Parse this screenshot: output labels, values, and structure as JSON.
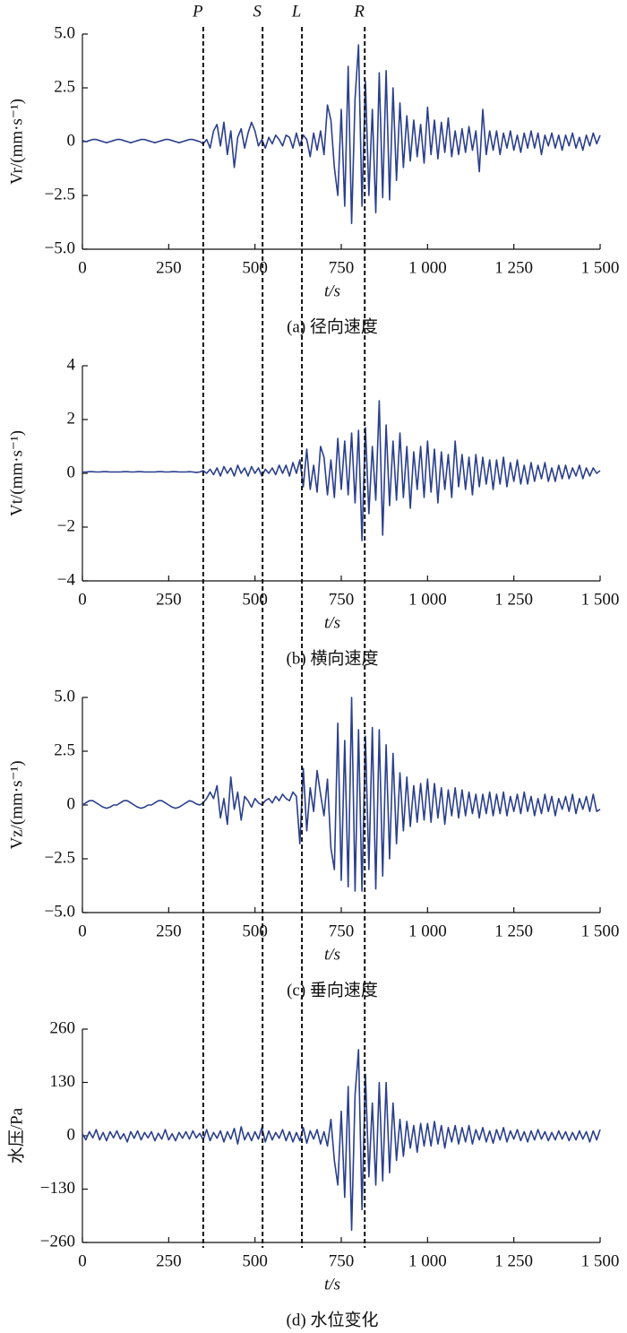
{
  "markers": [
    {
      "label": "P",
      "x": 350
    },
    {
      "label": "S",
      "x": 522
    },
    {
      "label": "L",
      "x": 636
    },
    {
      "label": "R",
      "x": 818
    }
  ],
  "chart_data": [
    {
      "type": "line",
      "caption": "(a) 径向速度",
      "xlabel": "t/s",
      "ylabel": "Vr/(mm·s⁻¹)",
      "color": "#2b3f8c",
      "xlim": [
        0,
        1500
      ],
      "xticks": [
        0,
        250,
        500,
        750,
        {
          "value": 1000,
          "label": "1 000"
        },
        {
          "value": 1250,
          "label": "1 250"
        },
        {
          "value": 1500,
          "label": "1 500"
        }
      ],
      "ylim": [
        -5,
        5
      ],
      "yticks": [
        {
          "value": -5,
          "label": "−5.0"
        },
        {
          "value": -2.5,
          "label": "−2.5"
        },
        0,
        2.5,
        {
          "value": 5,
          "label": "5.0"
        }
      ],
      "x": [
        0,
        10,
        20,
        30,
        40,
        50,
        60,
        70,
        80,
        90,
        100,
        110,
        120,
        130,
        140,
        150,
        160,
        170,
        180,
        190,
        200,
        210,
        220,
        230,
        240,
        250,
        260,
        270,
        280,
        290,
        300,
        310,
        320,
        330,
        340,
        350,
        360,
        370,
        380,
        390,
        400,
        410,
        420,
        430,
        440,
        450,
        460,
        470,
        480,
        490,
        500,
        510,
        520,
        530,
        540,
        550,
        560,
        570,
        580,
        590,
        600,
        610,
        620,
        630,
        640,
        650,
        660,
        670,
        680,
        690,
        700,
        710,
        720,
        730,
        740,
        750,
        760,
        770,
        780,
        790,
        800,
        810,
        820,
        830,
        840,
        850,
        860,
        870,
        880,
        890,
        900,
        910,
        920,
        930,
        940,
        950,
        960,
        970,
        980,
        990,
        1000,
        1010,
        1020,
        1030,
        1040,
        1050,
        1060,
        1070,
        1080,
        1090,
        1100,
        1110,
        1120,
        1130,
        1140,
        1150,
        1160,
        1170,
        1180,
        1190,
        1200,
        1210,
        1220,
        1230,
        1240,
        1250,
        1260,
        1270,
        1280,
        1290,
        1300,
        1310,
        1320,
        1330,
        1340,
        1350,
        1360,
        1370,
        1380,
        1390,
        1400,
        1410,
        1420,
        1430,
        1440,
        1450,
        1460,
        1470,
        1480,
        1490,
        1500
      ],
      "values": [
        0.05,
        0,
        0.05,
        0.1,
        0.1,
        0.05,
        0,
        -0.05,
        0,
        0.05,
        0.1,
        0.1,
        0.05,
        0,
        -0.05,
        0,
        0.05,
        0.1,
        0.1,
        0.05,
        0,
        -0.05,
        0,
        0.05,
        0.1,
        0.1,
        0.05,
        0,
        -0.05,
        0,
        0.05,
        0.1,
        0.1,
        0.05,
        0,
        -0.1,
        0.1,
        -0.3,
        0.5,
        0.8,
        -0.2,
        0.9,
        -0.6,
        0.5,
        -1.2,
        0.2,
        0.6,
        -0.3,
        0.4,
        0.9,
        0.5,
        -0.2,
        0.1,
        -0.3,
        0.2,
        -0.1,
        0.3,
        0.1,
        -0.2,
        0.3,
        0.2,
        -0.3,
        0.4,
        -0.2,
        0.3,
        0.1,
        -0.7,
        0.4,
        -0.4,
        0.5,
        -0.6,
        1.7,
        1.0,
        -1.2,
        -2.5,
        1.5,
        -3.0,
        3.5,
        -3.8,
        2.0,
        4.5,
        -3.0,
        2.8,
        -2.5,
        1.5,
        -3.3,
        3.2,
        -2.6,
        3.3,
        -2.7,
        2.5,
        -1.8,
        1.8,
        -1.2,
        1.2,
        -0.9,
        1.0,
        -0.7,
        0.8,
        -1.0,
        1.6,
        -0.6,
        1.0,
        -0.8,
        0.9,
        -0.5,
        1.1,
        -0.7,
        0.5,
        -0.6,
        0.6,
        -0.5,
        0.7,
        -0.4,
        0.5,
        -1.4,
        1.5,
        -0.6,
        0.5,
        -0.4,
        0.5,
        -0.6,
        0.4,
        -0.3,
        0.5,
        -0.4,
        0.3,
        -0.5,
        0.4,
        -0.3,
        0.5,
        -0.3,
        0.4,
        -0.6,
        0.3,
        -0.2,
        0.4,
        -0.3,
        0.3,
        -0.4,
        0.3,
        -0.2,
        0.4,
        -0.3,
        0.2,
        -0.4,
        0.3,
        -0.2,
        0.4,
        -0.1,
        0.3
      ]
    },
    {
      "type": "line",
      "caption": "(b) 横向速度",
      "xlabel": "t/s",
      "ylabel": "Vt/(mm·s⁻¹)",
      "color": "#2b3f8c",
      "xlim": [
        0,
        1500
      ],
      "xticks": [
        0,
        250,
        500,
        750,
        {
          "value": 1000,
          "label": "1 000"
        },
        {
          "value": 1250,
          "label": "1 250"
        },
        {
          "value": 1500,
          "label": "1 500"
        }
      ],
      "ylim": [
        -4,
        4
      ],
      "yticks": [
        {
          "value": -4,
          "label": "−4"
        },
        {
          "value": -2,
          "label": "−2"
        },
        0,
        2,
        4
      ],
      "x": [
        0,
        10,
        20,
        30,
        40,
        50,
        60,
        70,
        80,
        90,
        100,
        110,
        120,
        130,
        140,
        150,
        160,
        170,
        180,
        190,
        200,
        210,
        220,
        230,
        240,
        250,
        260,
        270,
        280,
        290,
        300,
        310,
        320,
        330,
        340,
        350,
        360,
        370,
        380,
        390,
        400,
        410,
        420,
        430,
        440,
        450,
        460,
        470,
        480,
        490,
        500,
        510,
        520,
        530,
        540,
        550,
        560,
        570,
        580,
        590,
        600,
        610,
        620,
        630,
        640,
        650,
        660,
        670,
        680,
        690,
        700,
        710,
        720,
        730,
        740,
        750,
        760,
        770,
        780,
        790,
        800,
        810,
        820,
        830,
        840,
        850,
        860,
        870,
        880,
        890,
        900,
        910,
        920,
        930,
        940,
        950,
        960,
        970,
        980,
        990,
        1000,
        1010,
        1020,
        1030,
        1040,
        1050,
        1060,
        1070,
        1080,
        1090,
        1100,
        1110,
        1120,
        1130,
        1140,
        1150,
        1160,
        1170,
        1180,
        1190,
        1200,
        1210,
        1220,
        1230,
        1240,
        1250,
        1260,
        1270,
        1280,
        1290,
        1300,
        1310,
        1320,
        1330,
        1340,
        1350,
        1360,
        1370,
        1380,
        1390,
        1400,
        1410,
        1420,
        1430,
        1440,
        1450,
        1460,
        1470,
        1480,
        1490,
        1500
      ],
      "values": [
        0.05,
        0.05,
        0.06,
        0.06,
        0.05,
        0.05,
        0.06,
        0.06,
        0.05,
        0.05,
        0.05,
        0.05,
        0.06,
        0.06,
        0.05,
        0.05,
        0.06,
        0.06,
        0.05,
        0.05,
        0.05,
        0.05,
        0.06,
        0.06,
        0.05,
        0.05,
        0.06,
        0.06,
        0.05,
        0.05,
        0.05,
        0.06,
        0.05,
        0.03,
        0.05,
        0.1,
        0,
        0.15,
        -0.05,
        0.2,
        -0.1,
        0.25,
        0,
        0.2,
        -0.1,
        0.3,
        0,
        0.2,
        -0.1,
        0.25,
        0,
        0.2,
        -0.1,
        0.15,
        0,
        0.2,
        -0.05,
        0.3,
        0,
        0.3,
        -0.1,
        0.4,
        0,
        0.5,
        -0.5,
        0.9,
        -0.6,
        0.3,
        -0.7,
        1.0,
        0.6,
        -0.8,
        0.5,
        -0.9,
        1.3,
        -0.6,
        1.2,
        -0.8,
        1.5,
        -1.1,
        1.6,
        -2.5,
        1.7,
        -1.5,
        1.0,
        -1.0,
        2.7,
        -2.3,
        1.8,
        -1.2,
        1.2,
        -1.0,
        1.5,
        -0.9,
        1.0,
        -1.3,
        0.8,
        -0.6,
        1.0,
        -0.9,
        1.2,
        -0.7,
        0.9,
        -1.1,
        0.8,
        -0.6,
        0.7,
        -0.9,
        1.2,
        -0.5,
        0.7,
        -0.6,
        0.6,
        -0.8,
        0.7,
        -0.5,
        0.6,
        -0.4,
        0.5,
        -0.6,
        0.5,
        -0.4,
        0.6,
        -0.5,
        0.4,
        -0.3,
        0.5,
        -0.4,
        0.3,
        -0.4,
        0.4,
        -0.3,
        0.3,
        -0.2,
        0.4,
        -0.3,
        0.2,
        -0.3,
        0.3,
        -0.2,
        0.3,
        -0.2,
        0.2,
        -0.1,
        0.3,
        -0.2,
        0.2,
        -0.1,
        0.2,
        0,
        0.1
      ]
    },
    {
      "type": "line",
      "caption": "(c) 垂向速度",
      "xlabel": "t/s",
      "ylabel": "Vz/(mm·s⁻¹)",
      "color": "#2b3f8c",
      "xlim": [
        0,
        1500
      ],
      "xticks": [
        0,
        250,
        500,
        750,
        {
          "value": 1000,
          "label": "1 000"
        },
        {
          "value": 1250,
          "label": "1 250"
        },
        {
          "value": 1500,
          "label": "1 500"
        }
      ],
      "ylim": [
        -5,
        5
      ],
      "yticks": [
        {
          "value": -5,
          "label": "−5.0"
        },
        {
          "value": -2.5,
          "label": "−2.5"
        },
        0,
        2.5,
        {
          "value": 5,
          "label": "5.0"
        }
      ],
      "x": [
        0,
        10,
        20,
        30,
        40,
        50,
        60,
        70,
        80,
        90,
        100,
        110,
        120,
        130,
        140,
        150,
        160,
        170,
        180,
        190,
        200,
        210,
        220,
        230,
        240,
        250,
        260,
        270,
        280,
        290,
        300,
        310,
        320,
        330,
        340,
        350,
        360,
        370,
        380,
        390,
        400,
        410,
        420,
        430,
        440,
        450,
        460,
        470,
        480,
        490,
        500,
        510,
        520,
        530,
        540,
        550,
        560,
        570,
        580,
        590,
        600,
        610,
        620,
        630,
        640,
        650,
        660,
        670,
        680,
        690,
        700,
        710,
        720,
        730,
        740,
        750,
        760,
        770,
        780,
        790,
        800,
        810,
        820,
        830,
        840,
        850,
        860,
        870,
        880,
        890,
        900,
        910,
        920,
        930,
        940,
        950,
        960,
        970,
        980,
        990,
        1000,
        1010,
        1020,
        1030,
        1040,
        1050,
        1060,
        1070,
        1080,
        1090,
        1100,
        1110,
        1120,
        1130,
        1140,
        1150,
        1160,
        1170,
        1180,
        1190,
        1200,
        1210,
        1220,
        1230,
        1240,
        1250,
        1260,
        1270,
        1280,
        1290,
        1300,
        1310,
        1320,
        1330,
        1340,
        1350,
        1360,
        1370,
        1380,
        1390,
        1400,
        1410,
        1420,
        1430,
        1440,
        1450,
        1460,
        1470,
        1480,
        1490,
        1500
      ],
      "values": [
        0,
        0.1,
        0.2,
        0.2,
        0.1,
        0,
        -0.1,
        -0.15,
        -0.1,
        0,
        0,
        0.1,
        0.2,
        0.2,
        0.1,
        0,
        -0.1,
        -0.15,
        -0.1,
        0,
        0,
        0.1,
        0.2,
        0.2,
        0.1,
        0,
        -0.1,
        -0.15,
        -0.1,
        0,
        0.1,
        0.2,
        0.15,
        0.05,
        0,
        0.1,
        0.3,
        0.6,
        0.3,
        0.9,
        -0.6,
        0.3,
        -0.9,
        1.3,
        -0.2,
        0.6,
        -0.7,
        0.4,
        0.2,
        -0.1,
        0.3,
        0.1,
        0,
        0.2,
        0.3,
        0.1,
        0.4,
        0.2,
        0.5,
        0.3,
        0.2,
        0.6,
        0.4,
        -1.8,
        1.7,
        -1.2,
        0.8,
        -0.3,
        1.6,
        0.5,
        -0.5,
        1.2,
        -2.0,
        -3.0,
        3.8,
        -3.5,
        3.0,
        -3.8,
        5.0,
        -4.0,
        3.5,
        -4.0,
        3.2,
        -3.0,
        3.6,
        -3.9,
        3.5,
        -3.3,
        2.8,
        -2.5,
        2.4,
        -1.8,
        1.5,
        -1.2,
        1.3,
        -1.0,
        0.9,
        -0.8,
        1.0,
        -0.7,
        1.2,
        -0.8,
        1.0,
        -0.6,
        0.8,
        -0.9,
        0.7,
        -0.5,
        0.8,
        -0.6,
        0.7,
        -0.5,
        0.6,
        -0.4,
        0.5,
        -0.6,
        0.5,
        -0.4,
        0.6,
        -0.5,
        0.5,
        -0.4,
        0.6,
        -0.5,
        0.4,
        -0.3,
        0.5,
        -0.4,
        0.6,
        -0.3,
        0.4,
        -0.5,
        0.3,
        -0.4,
        0.5,
        -0.3,
        0.4,
        -0.5,
        0.3,
        -0.2,
        0.4,
        -0.3,
        0.5,
        -0.4,
        0.3,
        -0.2,
        0.4,
        -0.3,
        0.5,
        -0.3,
        -0.2
      ]
    },
    {
      "type": "line",
      "caption": "(d) 水位变化",
      "xlabel": "t/s",
      "ylabel": "水压/Pa",
      "color": "#2b3f8c",
      "xlim": [
        0,
        1500
      ],
      "xticks": [
        0,
        250,
        500,
        750,
        {
          "value": 1000,
          "label": "1 000"
        },
        {
          "value": 1250,
          "label": "1 250"
        },
        {
          "value": 1500,
          "label": "1 500"
        }
      ],
      "ylim": [
        -260,
        260
      ],
      "yticks": [
        {
          "value": -260,
          "label": "−260"
        },
        {
          "value": -130,
          "label": "−130"
        },
        0,
        130,
        260
      ],
      "x": [
        0,
        10,
        20,
        30,
        40,
        50,
        60,
        70,
        80,
        90,
        100,
        110,
        120,
        130,
        140,
        150,
        160,
        170,
        180,
        190,
        200,
        210,
        220,
        230,
        240,
        250,
        260,
        270,
        280,
        290,
        300,
        310,
        320,
        330,
        340,
        350,
        360,
        370,
        380,
        390,
        400,
        410,
        420,
        430,
        440,
        450,
        460,
        470,
        480,
        490,
        500,
        510,
        520,
        530,
        540,
        550,
        560,
        570,
        580,
        590,
        600,
        610,
        620,
        630,
        640,
        650,
        660,
        670,
        680,
        690,
        700,
        710,
        720,
        730,
        740,
        750,
        760,
        770,
        780,
        790,
        800,
        810,
        820,
        830,
        840,
        850,
        860,
        870,
        880,
        890,
        900,
        910,
        920,
        930,
        940,
        950,
        960,
        970,
        980,
        990,
        1000,
        1010,
        1020,
        1030,
        1040,
        1050,
        1060,
        1070,
        1080,
        1090,
        1100,
        1110,
        1120,
        1130,
        1140,
        1150,
        1160,
        1170,
        1180,
        1190,
        1200,
        1210,
        1220,
        1230,
        1240,
        1250,
        1260,
        1270,
        1280,
        1290,
        1300,
        1310,
        1320,
        1330,
        1340,
        1350,
        1360,
        1370,
        1380,
        1390,
        1400,
        1410,
        1420,
        1430,
        1440,
        1450,
        1460,
        1470,
        1480,
        1490,
        1500
      ],
      "values": [
        5,
        -10,
        10,
        -5,
        15,
        -10,
        8,
        -12,
        10,
        -5,
        12,
        -8,
        5,
        -15,
        10,
        -6,
        12,
        -10,
        8,
        -5,
        10,
        -12,
        6,
        -8,
        15,
        -10,
        5,
        -12,
        8,
        -6,
        10,
        -8,
        12,
        -5,
        6,
        -10,
        15,
        -12,
        8,
        -6,
        12,
        -15,
        10,
        -8,
        18,
        -20,
        22,
        -10,
        8,
        -12,
        10,
        -8,
        20,
        -15,
        12,
        -10,
        8,
        -6,
        15,
        -12,
        10,
        -15,
        8,
        -12,
        20,
        -18,
        12,
        -8,
        15,
        -20,
        10,
        -25,
        40,
        -60,
        -120,
        60,
        -150,
        120,
        -230,
        100,
        210,
        -180,
        150,
        -100,
        80,
        -120,
        130,
        -110,
        130,
        -90,
        80,
        -60,
        40,
        -50,
        35,
        -30,
        25,
        -40,
        30,
        -25,
        30,
        -25,
        35,
        -20,
        25,
        -30,
        20,
        -15,
        25,
        -20,
        20,
        -15,
        25,
        -20,
        15,
        -10,
        20,
        -15,
        12,
        -18,
        15,
        -10,
        20,
        -15,
        12,
        -8,
        15,
        -12,
        10,
        -15,
        12,
        -10,
        15,
        -8,
        10,
        -12,
        8,
        -10,
        12,
        -8,
        10,
        -12,
        8,
        -10,
        12,
        -8,
        10,
        -15,
        12,
        -10,
        15
      ]
    }
  ]
}
